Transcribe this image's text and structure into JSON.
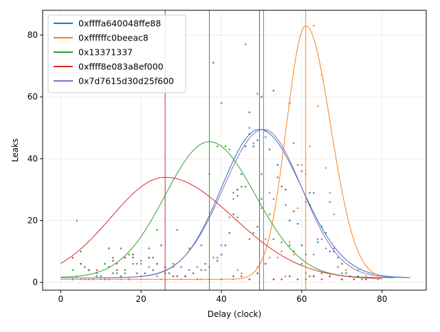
{
  "chart_data": {
    "type": "line",
    "title": "",
    "xlabel": "Delay (clock)",
    "ylabel": "Leaks",
    "xlim": [
      -4.5,
      91
    ],
    "ylim": [
      -2.5,
      88
    ],
    "xticks": [
      0,
      20,
      40,
      60,
      80
    ],
    "yticks": [
      0,
      20,
      40,
      60,
      80
    ],
    "grid": true,
    "legend_position": "top-left",
    "series": [
      {
        "name": "0xffffa640048ffe88",
        "color": "#1f77b4",
        "fit": {
          "amp": 48,
          "mu": 49.5,
          "sigma_left": 9.5,
          "sigma_right": 10.5,
          "base": 1.5,
          "x_start": 0,
          "x_end": 87
        },
        "vline": 49.5,
        "points": [
          [
            3,
            1
          ],
          [
            5,
            1
          ],
          [
            7,
            1
          ],
          [
            9,
            2
          ],
          [
            11,
            1
          ],
          [
            13,
            3
          ],
          [
            15,
            2
          ],
          [
            17,
            1
          ],
          [
            19,
            3
          ],
          [
            21,
            3
          ],
          [
            23,
            4
          ],
          [
            25,
            12
          ],
          [
            27,
            3
          ],
          [
            29,
            2
          ],
          [
            31,
            2
          ],
          [
            33,
            3
          ],
          [
            35,
            4
          ],
          [
            37,
            5
          ],
          [
            39,
            7
          ],
          [
            40,
            9
          ],
          [
            41,
            12
          ],
          [
            42,
            16
          ],
          [
            43,
            22
          ],
          [
            44,
            30
          ],
          [
            45,
            35
          ],
          [
            46,
            44
          ],
          [
            47,
            48
          ],
          [
            47,
            55
          ],
          [
            48,
            44
          ],
          [
            49,
            46
          ],
          [
            50,
            60
          ],
          [
            51,
            49
          ],
          [
            52,
            43
          ],
          [
            53,
            62
          ],
          [
            54,
            38
          ],
          [
            55,
            31
          ],
          [
            56,
            30
          ],
          [
            57,
            20
          ],
          [
            58,
            23
          ],
          [
            59,
            19
          ],
          [
            60,
            12
          ],
          [
            61,
            9
          ],
          [
            62,
            29
          ],
          [
            63,
            29
          ],
          [
            64,
            13
          ],
          [
            65,
            18
          ],
          [
            66,
            16
          ],
          [
            67,
            10
          ],
          [
            68,
            10
          ],
          [
            69,
            5
          ],
          [
            70,
            6
          ],
          [
            71,
            3
          ],
          [
            72,
            2
          ],
          [
            74,
            2
          ],
          [
            76,
            1
          ]
        ]
      },
      {
        "name": "0xffffffc0beeac8",
        "color": "#ff7f0e",
        "fit": {
          "amp": 82,
          "mu": 61,
          "sigma_left": 4.8,
          "sigma_right": 6.2,
          "base": 1,
          "x_start": 0,
          "x_end": 79
        },
        "vline": 61,
        "points": [
          [
            5,
            1
          ],
          [
            10,
            1
          ],
          [
            15,
            1
          ],
          [
            20,
            1
          ],
          [
            25,
            1
          ],
          [
            30,
            1
          ],
          [
            35,
            1
          ],
          [
            40,
            1
          ],
          [
            43,
            1
          ],
          [
            44,
            4
          ],
          [
            45,
            3
          ],
          [
            47,
            1
          ],
          [
            49,
            5
          ],
          [
            50,
            24
          ],
          [
            51,
            14
          ],
          [
            52,
            8
          ],
          [
            53,
            1
          ],
          [
            54,
            8
          ],
          [
            55,
            10
          ],
          [
            56,
            2
          ],
          [
            57,
            13
          ],
          [
            58,
            9
          ],
          [
            59,
            24
          ],
          [
            60,
            38
          ],
          [
            61,
            35
          ],
          [
            62,
            44
          ],
          [
            63,
            83
          ],
          [
            64,
            57
          ],
          [
            65,
            67
          ],
          [
            66,
            37
          ],
          [
            67,
            29
          ],
          [
            68,
            22
          ],
          [
            69,
            5
          ],
          [
            71,
            4
          ],
          [
            72,
            2
          ],
          [
            74,
            4
          ],
          [
            76,
            2
          ],
          [
            79,
            1
          ]
        ]
      },
      {
        "name": "0x13371337",
        "color": "#2ca02c",
        "fit": {
          "amp": 44,
          "mu": 37,
          "sigma_left": 11,
          "sigma_right": 11.5,
          "base": 1.5,
          "x_start": 0,
          "x_end": 83
        },
        "vline": 37,
        "points": [
          [
            3,
            4
          ],
          [
            4,
            20
          ],
          [
            5,
            10
          ],
          [
            6,
            5
          ],
          [
            7,
            4
          ],
          [
            9,
            3
          ],
          [
            10,
            2
          ],
          [
            11,
            6
          ],
          [
            12,
            5
          ],
          [
            13,
            8
          ],
          [
            14,
            3
          ],
          [
            15,
            11
          ],
          [
            16,
            4
          ],
          [
            17,
            9
          ],
          [
            18,
            8
          ],
          [
            19,
            6
          ],
          [
            20,
            7
          ],
          [
            22,
            11
          ],
          [
            23,
            8
          ],
          [
            24,
            17
          ],
          [
            26,
            5
          ],
          [
            28,
            6
          ],
          [
            29,
            17
          ],
          [
            32,
            11
          ],
          [
            35,
            12
          ],
          [
            36,
            6
          ],
          [
            37,
            35
          ],
          [
            38,
            71
          ],
          [
            39,
            44
          ],
          [
            40,
            58
          ],
          [
            41,
            44
          ],
          [
            42,
            43
          ],
          [
            43,
            29
          ],
          [
            44,
            21
          ],
          [
            45,
            31
          ],
          [
            46,
            31
          ],
          [
            47,
            14
          ],
          [
            48,
            16
          ],
          [
            49,
            18
          ],
          [
            50,
            27
          ],
          [
            52,
            22
          ],
          [
            53,
            14
          ],
          [
            55,
            13
          ],
          [
            57,
            12
          ],
          [
            58,
            10
          ],
          [
            60,
            6
          ],
          [
            61,
            3
          ],
          [
            62,
            2
          ],
          [
            63,
            2
          ],
          [
            65,
            3
          ],
          [
            67,
            2
          ],
          [
            70,
            1
          ]
        ]
      },
      {
        "name": "0xffff8e083a8ef000",
        "color": "#d62728",
        "fit": {
          "amp": 33,
          "mu": 26,
          "sigma_left": 13.5,
          "sigma_right": 17,
          "base": 1,
          "x_start": 0,
          "x_end": 80
        },
        "vline": 26,
        "points": [
          [
            3,
            8
          ],
          [
            5,
            6
          ],
          [
            7,
            4
          ],
          [
            9,
            4
          ],
          [
            12,
            11
          ],
          [
            13,
            7
          ],
          [
            14,
            4
          ],
          [
            16,
            8
          ],
          [
            18,
            9
          ],
          [
            20,
            2
          ],
          [
            22,
            8
          ],
          [
            24,
            6
          ],
          [
            26,
            3
          ],
          [
            28,
            2
          ],
          [
            31,
            2
          ],
          [
            34,
            1
          ],
          [
            37,
            1
          ],
          [
            40,
            1
          ],
          [
            43,
            2
          ],
          [
            45,
            2
          ],
          [
            47,
            1
          ],
          [
            49,
            3
          ],
          [
            51,
            6
          ],
          [
            53,
            1
          ],
          [
            55,
            1
          ],
          [
            57,
            2
          ],
          [
            59,
            1
          ],
          [
            61,
            1
          ],
          [
            63,
            2
          ],
          [
            65,
            1
          ],
          [
            67,
            2
          ],
          [
            70,
            1
          ],
          [
            73,
            1
          ]
        ]
      },
      {
        "name": "0x7d7615d30d25f600",
        "color": "#9467bd",
        "fit": {
          "amp": 48,
          "mu": 50.5,
          "sigma_left": 10,
          "sigma_right": 9.5,
          "base": 1.5,
          "x_start": 0,
          "x_end": 87
        },
        "vline": 50.5,
        "points": [
          [
            4,
            2
          ],
          [
            6,
            1
          ],
          [
            8,
            1
          ],
          [
            10,
            2
          ],
          [
            12,
            1
          ],
          [
            14,
            6
          ],
          [
            16,
            3
          ],
          [
            18,
            6
          ],
          [
            20,
            6
          ],
          [
            22,
            5
          ],
          [
            24,
            2
          ],
          [
            26,
            5
          ],
          [
            28,
            5
          ],
          [
            30,
            5
          ],
          [
            32,
            4
          ],
          [
            34,
            5
          ],
          [
            36,
            4
          ],
          [
            38,
            8
          ],
          [
            39,
            8
          ],
          [
            40,
            12
          ],
          [
            42,
            21
          ],
          [
            43,
            27
          ],
          [
            44,
            28
          ],
          [
            46,
            77
          ],
          [
            47,
            50
          ],
          [
            48,
            45
          ],
          [
            49,
            61
          ],
          [
            50,
            35
          ],
          [
            51,
            47
          ],
          [
            52,
            29
          ],
          [
            53,
            27
          ],
          [
            54,
            34
          ],
          [
            55,
            31
          ],
          [
            56,
            25
          ],
          [
            57,
            58
          ],
          [
            58,
            45
          ],
          [
            59,
            38
          ],
          [
            60,
            36
          ],
          [
            61,
            26
          ],
          [
            62,
            25
          ],
          [
            63,
            9
          ],
          [
            64,
            14
          ],
          [
            65,
            14
          ],
          [
            66,
            11
          ],
          [
            67,
            26
          ],
          [
            68,
            11
          ],
          [
            69,
            8
          ],
          [
            70,
            3
          ],
          [
            72,
            2
          ],
          [
            75,
            1
          ]
        ]
      }
    ]
  }
}
